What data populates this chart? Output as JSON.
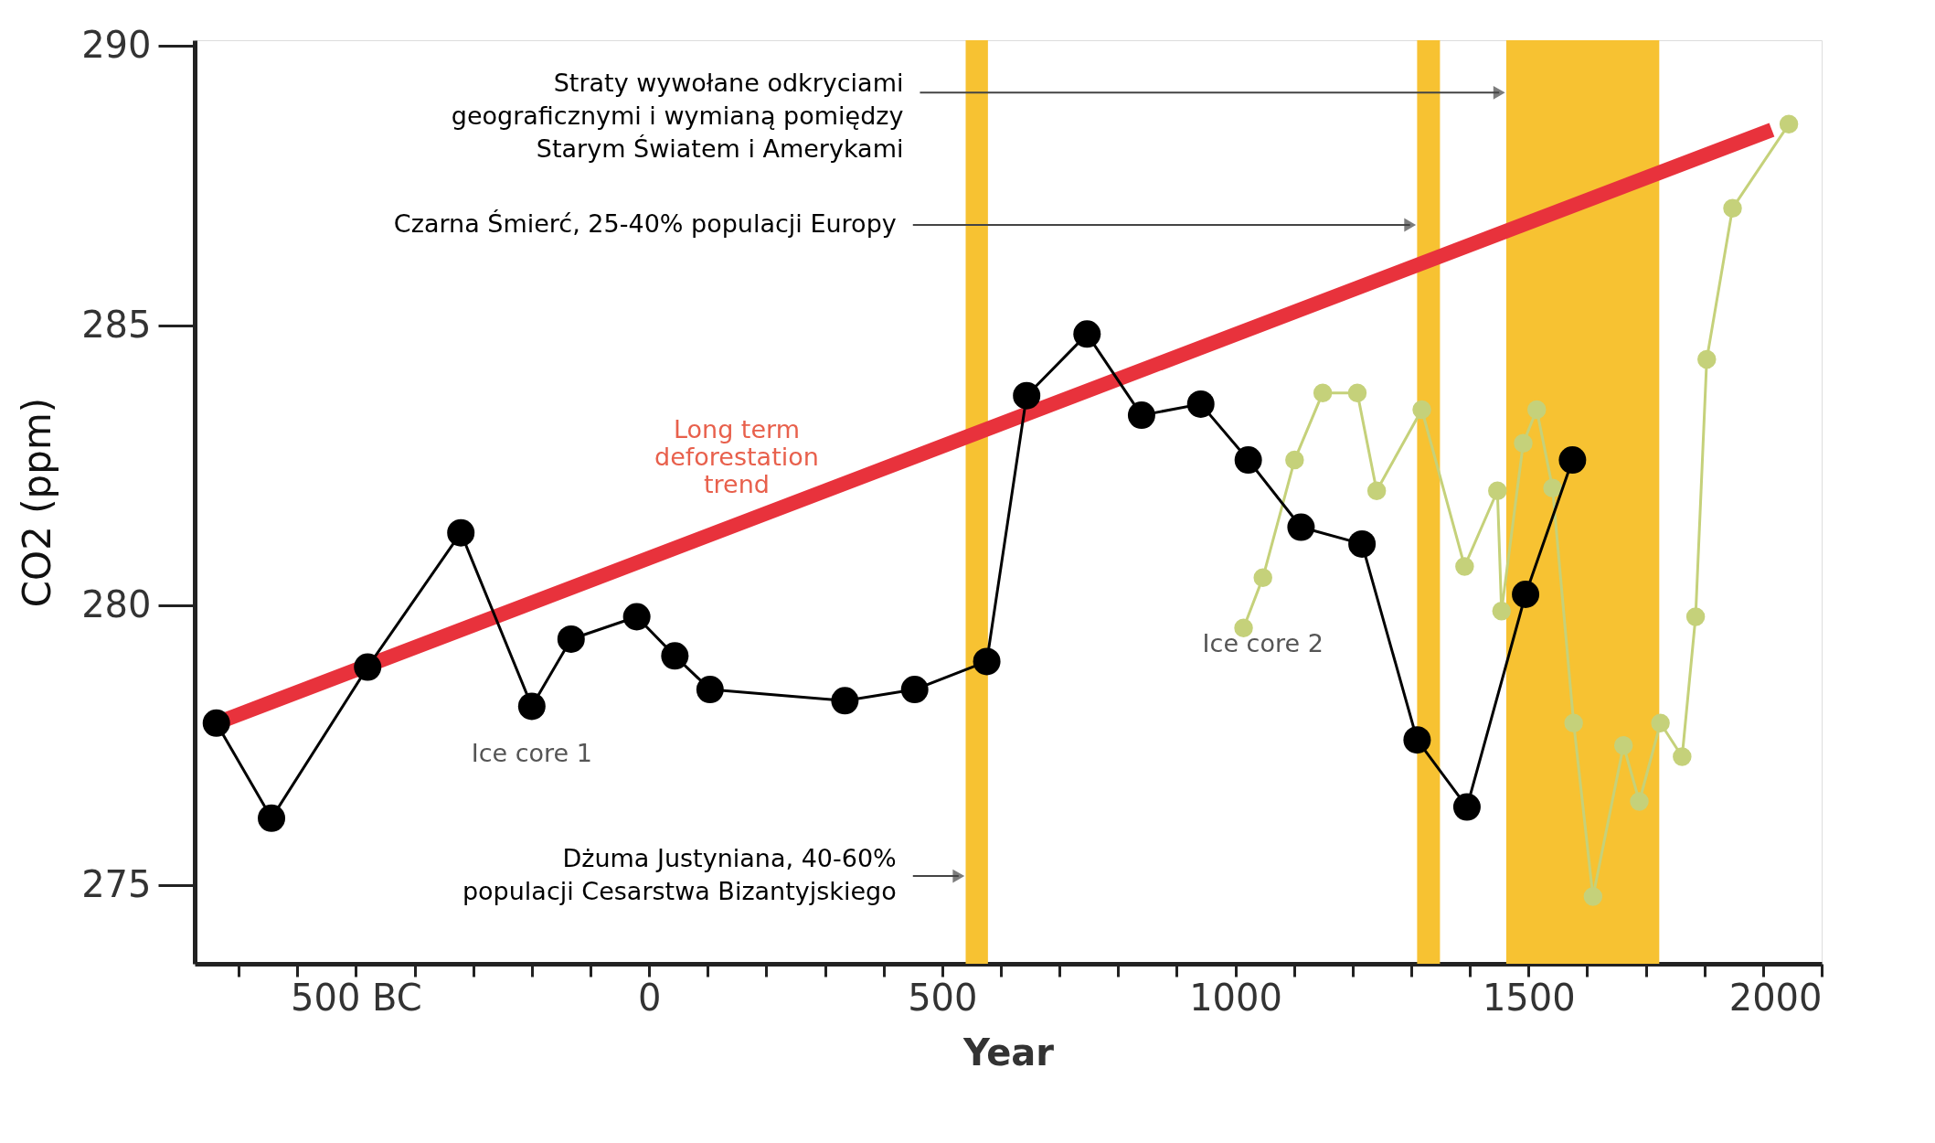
{
  "chart_data": {
    "type": "line",
    "xlabel": "Year",
    "ylabel": "CO2 (ppm)",
    "xlim": [
      -775,
      2000
    ],
    "ylim": [
      273.6,
      290.1
    ],
    "xticks": [
      {
        "value": -700,
        "label": null
      },
      {
        "value": -600,
        "label": null
      },
      {
        "value": -500,
        "label": "500 BC"
      },
      {
        "value": -400,
        "label": null
      },
      {
        "value": -300,
        "label": null
      },
      {
        "value": -200,
        "label": null
      },
      {
        "value": -100,
        "label": null
      },
      0,
      {
        "value": 100,
        "label": null
      },
      {
        "value": 200,
        "label": null
      },
      {
        "value": 300,
        "label": null
      },
      {
        "value": 400,
        "label": null
      },
      500,
      {
        "value": 600,
        "label": null
      },
      {
        "value": 700,
        "label": null
      },
      {
        "value": 800,
        "label": null
      },
      {
        "value": 900,
        "label": null
      },
      1000,
      {
        "value": 1100,
        "label": null
      },
      {
        "value": 1200,
        "label": null
      },
      {
        "value": 1300,
        "label": null
      },
      {
        "value": 1400,
        "label": null
      },
      1500,
      {
        "value": 1600,
        "label": null
      },
      {
        "value": 1700,
        "label": null
      },
      {
        "value": 1800,
        "label": null
      },
      {
        "value": 1900,
        "label": null
      },
      2000
    ],
    "yticks": [
      275,
      280,
      285,
      290
    ],
    "grid": false,
    "marker": "circle",
    "line_style": "solid",
    "series": [
      {
        "color": "#e8323c",
        "marker": "none",
        "x": [
          -738,
          1915
        ],
        "values": [
          277.9,
          288.5
        ]
      },
      {
        "color": "#c5d17a",
        "x": [
          1014,
          1047,
          1101,
          1149,
          1208,
          1241,
          1318,
          1391,
          1447,
          1454,
          1491,
          1514,
          1541,
          1577,
          1610,
          1662,
          1689,
          1725,
          1762,
          1785,
          1804,
          1848,
          1944
        ],
        "values": [
          279.6,
          280.5,
          282.6,
          283.8,
          283.8,
          282.05,
          283.5,
          280.7,
          282.05,
          279.9,
          282.9,
          283.5,
          282.1,
          277.9,
          274.8,
          277.5,
          276.5,
          277.9,
          277.3,
          279.8,
          284.4,
          287.1,
          288.6
        ]
      },
      {
        "color": "#000000",
        "x": [
          -738,
          -644,
          -480,
          -321,
          -200,
          -133,
          -21,
          44,
          104,
          334,
          453,
          576,
          644,
          747,
          840,
          941,
          1022,
          1112,
          1216,
          1310,
          1395,
          1495,
          1575
        ],
        "values": [
          277.9,
          276.2,
          278.9,
          281.3,
          278.2,
          279.4,
          279.8,
          279.1,
          278.5,
          278.3,
          278.5,
          279.0,
          283.75,
          284.85,
          283.4,
          283.6,
          282.6,
          281.4,
          281.1,
          277.6,
          276.4,
          280.2,
          282.6
        ]
      }
    ],
    "bands": [
      {
        "axis": "x",
        "from": 540,
        "to": 578,
        "color": "#f7c232",
        "label": "Dżuma Justyniana, 40-60%\npopulacji Cesarstwa Bizantyjskiego"
      },
      {
        "axis": "x",
        "from": 1310,
        "to": 1349,
        "color": "#f7c232",
        "label": "Czarna Śmierć, 25-40% populacji Europy"
      },
      {
        "axis": "x",
        "from": 1462,
        "to": 1723,
        "color": "#f7c232",
        "label": "Straty wywołane odkryciami\ngeograficznymi i wymianą pomiędzy\nStarym Światem i Amerykami"
      }
    ],
    "annotations": [
      {
        "text": "Ice core 1",
        "x": -200,
        "y": 278.2
      },
      {
        "text": "Ice core 2",
        "x": 1047,
        "y": 280.5
      },
      {
        "text": "Long term\ndeforestation\ntrend",
        "x": 165,
        "y": 281.3
      }
    ]
  }
}
